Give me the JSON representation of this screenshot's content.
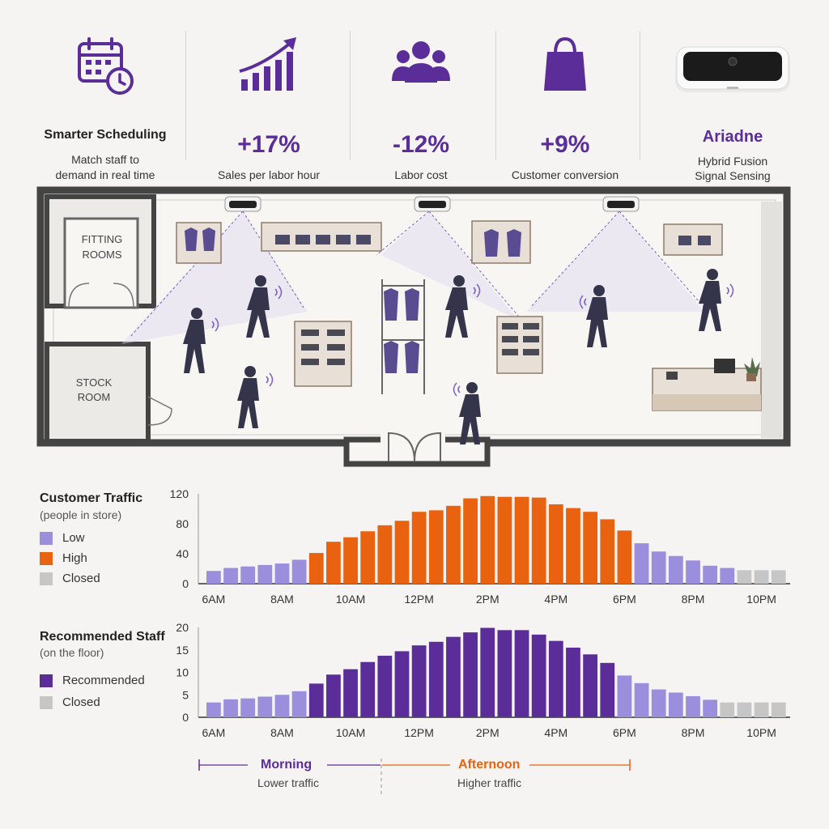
{
  "kpis": {
    "scheduling": {
      "icon": "calendar-clock-icon",
      "title": "Smarter Scheduling",
      "line1": "Match staff to",
      "line2": "demand in real time"
    },
    "sales": {
      "icon": "growth-chart-icon",
      "value": "+17%",
      "label": "Sales per labor hour"
    },
    "labor": {
      "icon": "people-group-icon",
      "value": "-12%",
      "label": "Labor cost"
    },
    "conversion": {
      "icon": "shopping-bag-icon",
      "value": "+9%",
      "label": "Customer conversion"
    },
    "device": {
      "icon": "sensor-device-icon",
      "name": "Ariadne",
      "line1": "Hybrid Fusion",
      "line2": "Signal Sensing"
    }
  },
  "floorplan": {
    "fitting_line1": "FITTING",
    "fitting_line2": "ROOMS",
    "stock_line1": "STOCK",
    "stock_line2": "ROOM"
  },
  "colors": {
    "accent": "#5b2d99",
    "low": "#9b8fdd",
    "high": "#e8620f",
    "closed": "#c6c6c6",
    "staff": "#5b2d99",
    "staff_low": "#9b8fdd"
  },
  "traffic": {
    "title": "Customer Traffic",
    "subtitle": "(people in store)",
    "legend": {
      "low": "Low",
      "high": "High",
      "closed": "Closed"
    }
  },
  "staff": {
    "title": "Recommended Staff",
    "subtitle": "(on the floor)",
    "legend": {
      "recommended": "Recommended",
      "closed": "Closed"
    }
  },
  "periods": {
    "morning": {
      "label": "Morning",
      "sub": "Lower traffic"
    },
    "afternoon": {
      "label": "Afternoon",
      "sub": "Higher traffic"
    }
  },
  "chart_data": [
    {
      "type": "bar",
      "title": "Customer Traffic",
      "ylim": [
        0,
        120
      ],
      "yticks": [
        0,
        40,
        80,
        120
      ],
      "xtick_labels": [
        "6AM",
        "8AM",
        "10AM",
        "12PM",
        "2PM",
        "4PM",
        "6PM",
        "8PM",
        "10PM"
      ],
      "values": [
        17,
        21,
        23,
        25,
        27,
        32,
        41,
        56,
        62,
        70,
        78,
        84,
        96,
        98,
        104,
        114,
        117,
        116,
        116,
        115,
        106,
        101,
        96,
        86,
        71,
        54,
        43,
        37,
        31,
        24,
        21,
        18,
        18,
        18
      ],
      "categories_per_bar": [
        "low",
        "low",
        "low",
        "low",
        "low",
        "low",
        "high",
        "high",
        "high",
        "high",
        "high",
        "high",
        "high",
        "high",
        "high",
        "high",
        "high",
        "high",
        "high",
        "high",
        "high",
        "high",
        "high",
        "high",
        "high",
        "low",
        "low",
        "low",
        "low",
        "low",
        "low",
        "closed",
        "closed",
        "closed"
      ]
    },
    {
      "type": "bar",
      "title": "Recommended Staff",
      "ylim": [
        0,
        20
      ],
      "yticks": [
        0,
        5,
        10,
        15,
        20
      ],
      "xtick_labels": [
        "6AM",
        "8AM",
        "10AM",
        "12PM",
        "2PM",
        "4PM",
        "6PM",
        "8PM",
        "10PM"
      ],
      "values": [
        3.3,
        4,
        4.2,
        4.6,
        5,
        5.8,
        7.5,
        9.5,
        10.7,
        12.3,
        13.7,
        14.7,
        16,
        16.8,
        17.9,
        18.9,
        19.9,
        19.4,
        19.4,
        18.4,
        17,
        15.5,
        14,
        12.1,
        9.3,
        7.6,
        6.2,
        5.5,
        4.7,
        3.9,
        3.3,
        3.3,
        3.3,
        3.3
      ],
      "categories_per_bar": [
        "low",
        "low",
        "low",
        "low",
        "low",
        "low",
        "rec",
        "rec",
        "rec",
        "rec",
        "rec",
        "rec",
        "rec",
        "rec",
        "rec",
        "rec",
        "rec",
        "rec",
        "rec",
        "rec",
        "rec",
        "rec",
        "rec",
        "rec",
        "low",
        "low",
        "low",
        "low",
        "low",
        "low",
        "closed",
        "closed",
        "closed",
        "closed"
      ]
    }
  ]
}
